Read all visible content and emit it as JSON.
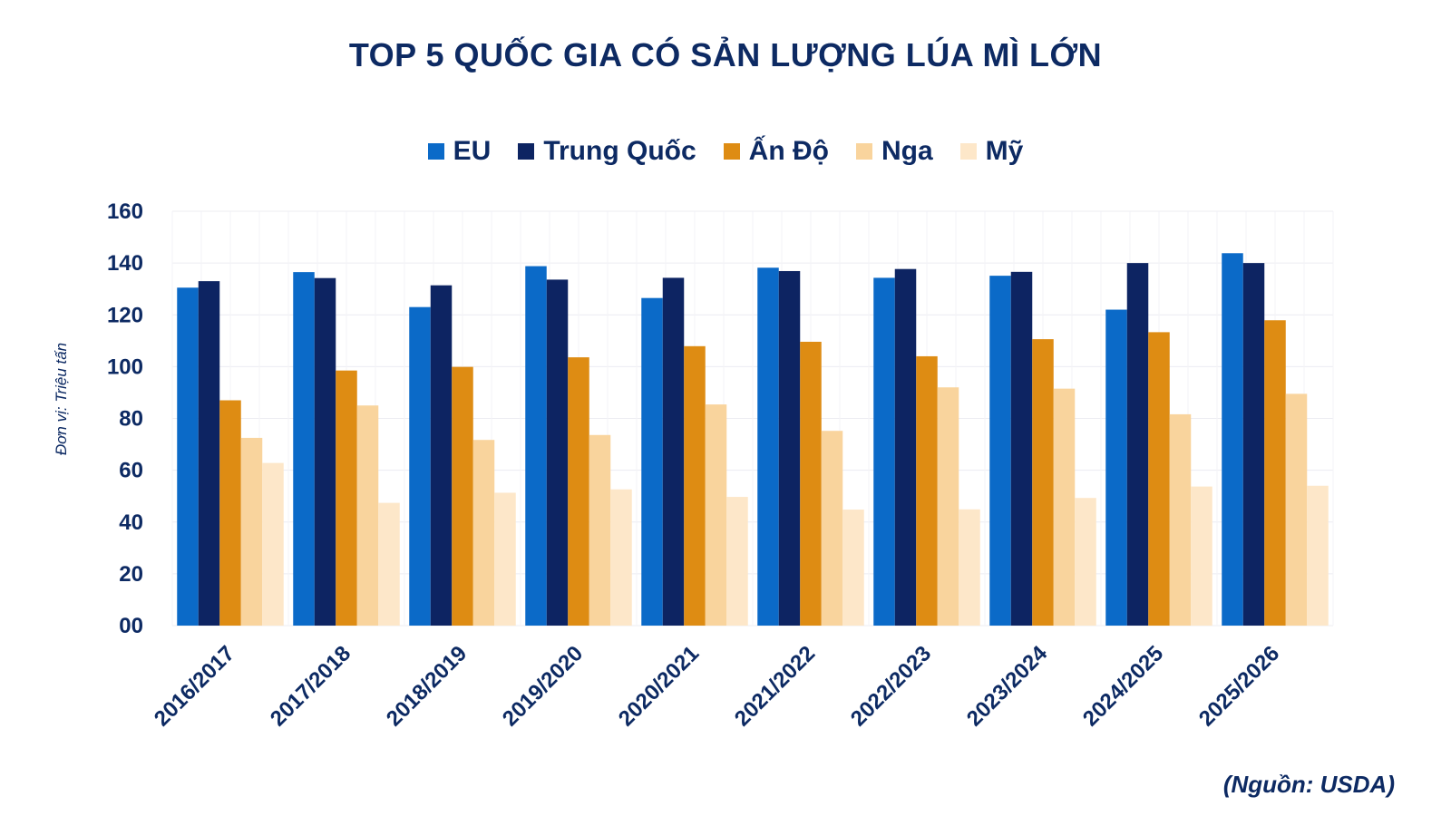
{
  "chart_data": {
    "type": "bar",
    "title": "TOP 5 QUỐC GIA CÓ SẢN LƯỢNG LÚA MÌ LỚN",
    "ylabel": "Đơn vị: Triệu tấn",
    "source": "(Nguồn: USDA)",
    "ylim": [
      0,
      160
    ],
    "yticks": [
      "00",
      "20",
      "40",
      "60",
      "80",
      "100",
      "120",
      "140",
      "160"
    ],
    "grid": true,
    "legend_position": "top",
    "categories": [
      "2016/2017",
      "2017/2018",
      "2018/2019",
      "2019/2020",
      "2020/2021",
      "2021/2022",
      "2022/2023",
      "2023/2024",
      "2024/2025",
      "2025/2026"
    ],
    "series": [
      {
        "name": "EU",
        "color": "#0b6ac8",
        "values": [
          130.5,
          136.5,
          123,
          138.8,
          126.5,
          138.2,
          134.3,
          135.1,
          122,
          143.8
        ]
      },
      {
        "name": "Trung Quốc",
        "color": "#0d2462",
        "values": [
          133,
          134.2,
          131.4,
          133.6,
          134.3,
          136.9,
          137.7,
          136.6,
          140,
          140
        ]
      },
      {
        "name": "Ấn Độ",
        "color": "#de8c13",
        "values": [
          87,
          98.5,
          99.9,
          103.6,
          107.9,
          109.6,
          104,
          110.6,
          113.3,
          117.9
        ]
      },
      {
        "name": "Nga",
        "color": "#f9d49d",
        "values": [
          72.5,
          85,
          71.7,
          73.6,
          85.4,
          75.2,
          92,
          91.5,
          81.6,
          89.5
        ]
      },
      {
        "name": "Mỹ",
        "color": "#fde7c9",
        "values": [
          62.8,
          47.4,
          51.3,
          52.6,
          49.7,
          44.8,
          44.9,
          49.3,
          53.7,
          54
        ]
      }
    ]
  }
}
